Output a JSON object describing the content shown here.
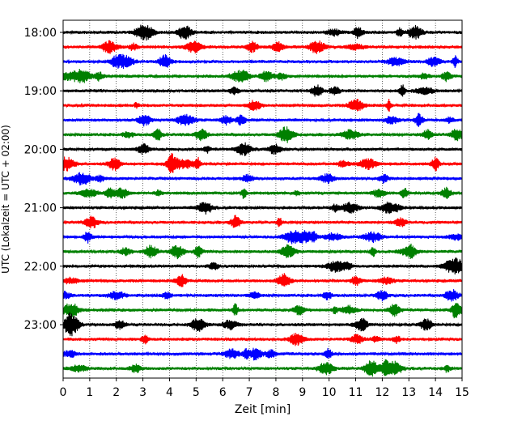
{
  "chart_data": {
    "type": "line",
    "title": "",
    "xlabel": "Zeit  [min]",
    "ylabel": "UTC (Lokalzeit = UTC + 02:00)",
    "xlim": [
      0,
      15
    ],
    "x_ticks": [
      "0",
      "1",
      "2",
      "3",
      "4",
      "5",
      "6",
      "7",
      "8",
      "9",
      "10",
      "11",
      "12",
      "13",
      "14",
      "15"
    ],
    "y_ticks": [
      "18:00",
      "19:00",
      "20:00",
      "21:00",
      "22:00",
      "23:00"
    ],
    "grid": "vertical dotted lines at each minute",
    "trace_interval_minutes": 15,
    "series": [
      {
        "start": "18:00",
        "color": "#000000"
      },
      {
        "start": "18:15",
        "color": "#ff0000"
      },
      {
        "start": "18:30",
        "color": "#0000ff"
      },
      {
        "start": "18:45",
        "color": "#008000"
      },
      {
        "start": "19:00",
        "color": "#000000"
      },
      {
        "start": "19:15",
        "color": "#ff0000"
      },
      {
        "start": "19:30",
        "color": "#0000ff"
      },
      {
        "start": "19:45",
        "color": "#008000"
      },
      {
        "start": "20:00",
        "color": "#000000"
      },
      {
        "start": "20:15",
        "color": "#ff0000"
      },
      {
        "start": "20:30",
        "color": "#0000ff"
      },
      {
        "start": "20:45",
        "color": "#008000"
      },
      {
        "start": "21:00",
        "color": "#000000"
      },
      {
        "start": "21:15",
        "color": "#ff0000"
      },
      {
        "start": "21:30",
        "color": "#0000ff"
      },
      {
        "start": "21:45",
        "color": "#008000"
      },
      {
        "start": "22:00",
        "color": "#000000"
      },
      {
        "start": "22:15",
        "color": "#ff0000"
      },
      {
        "start": "22:30",
        "color": "#0000ff"
      },
      {
        "start": "22:45",
        "color": "#008000"
      },
      {
        "start": "23:00",
        "color": "#000000"
      },
      {
        "start": "23:15",
        "color": "#ff0000"
      },
      {
        "start": "23:30",
        "color": "#0000ff"
      },
      {
        "start": "23:45",
        "color": "#008000"
      }
    ]
  }
}
